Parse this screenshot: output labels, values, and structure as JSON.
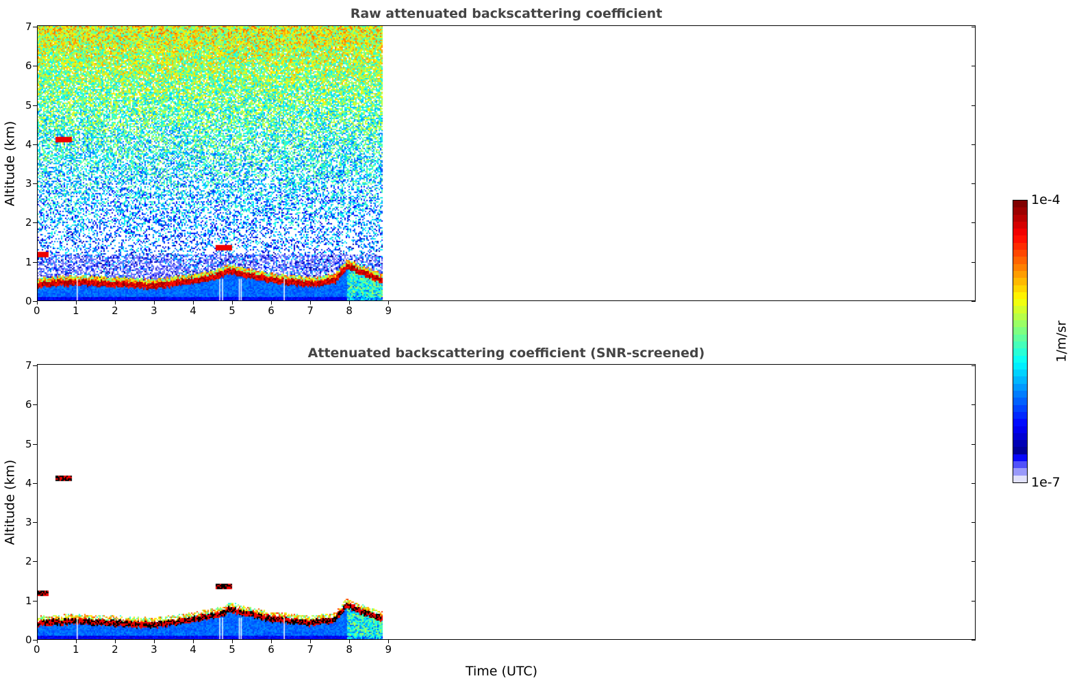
{
  "chart_data": [
    {
      "type": "heatmap",
      "title": "Raw attenuated backscattering coefficient",
      "ylabel": "Altitude (km)",
      "xlabel": "",
      "xlim": [
        0,
        24
      ],
      "ylim": [
        0,
        7
      ],
      "xticks": [
        "0",
        "1",
        "2",
        "3",
        "4",
        "5",
        "6",
        "7",
        "8",
        "9"
      ],
      "yticks": [
        "0",
        "1",
        "2",
        "3",
        "4",
        "5",
        "6",
        "7"
      ],
      "data_end_hour": 8.8,
      "layer_top_km": {
        "hours": [
          0,
          1,
          2,
          3,
          4,
          4.6,
          4.9,
          5.2,
          6,
          7,
          7.6,
          7.9,
          8.8
        ],
        "alt": [
          0.45,
          0.5,
          0.45,
          0.4,
          0.55,
          0.65,
          0.8,
          0.72,
          0.55,
          0.45,
          0.55,
          0.9,
          0.55
        ]
      },
      "features": [
        {
          "hour": 0.65,
          "alt_km": 4.12
        },
        {
          "hour": 4.75,
          "alt_km": 1.35
        },
        {
          "hour": 0.05,
          "alt_km": 1.2
        }
      ]
    },
    {
      "type": "heatmap",
      "title": "Attenuated backscattering coefficient (SNR-screened)",
      "ylabel": "Altitude (km)",
      "xlabel": "Time (UTC)",
      "xlim": [
        0,
        24
      ],
      "ylim": [
        0,
        7
      ],
      "xticks": [
        "0",
        "1",
        "2",
        "3",
        "4",
        "5",
        "6",
        "7",
        "8",
        "9"
      ],
      "yticks": [
        "0",
        "1",
        "2",
        "3",
        "4",
        "5",
        "6",
        "7"
      ]
    }
  ],
  "colorbar": {
    "label": "1/m/sr",
    "max_label": "1e-4",
    "min_label": "1e-7"
  }
}
